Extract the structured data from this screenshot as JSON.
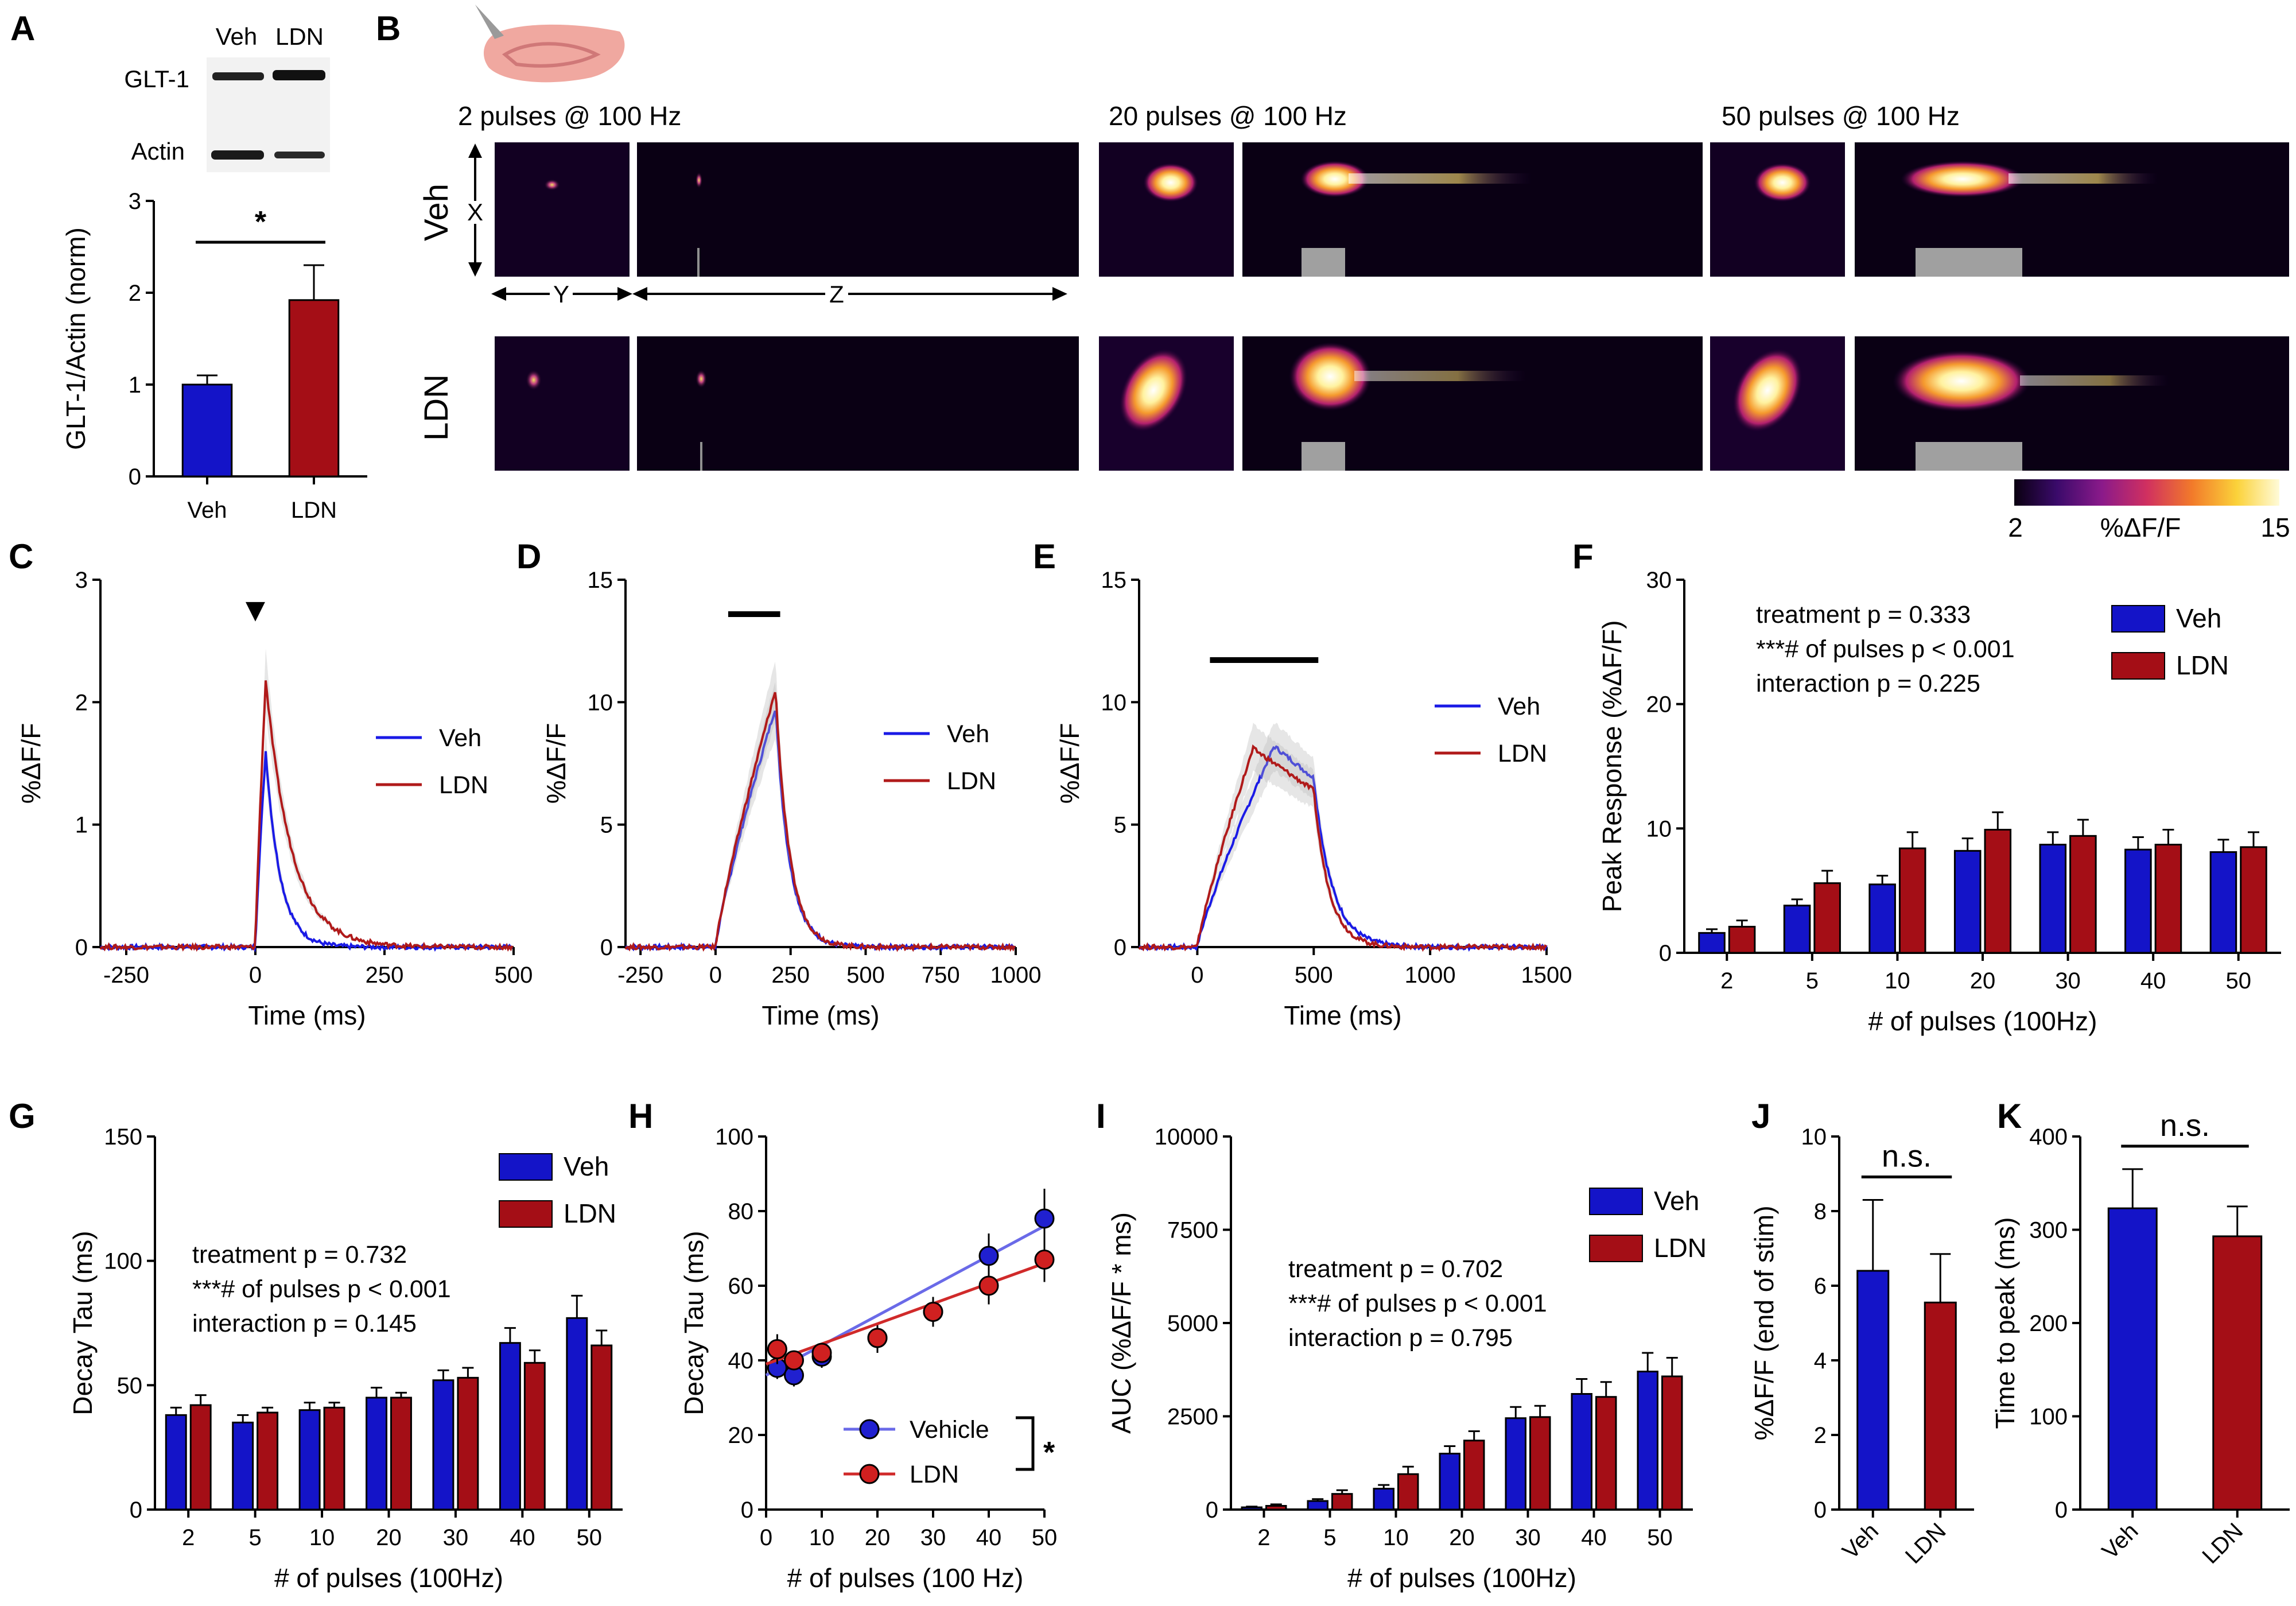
{
  "colors": {
    "veh": "#1414c8",
    "ldn": "#a40e16",
    "veh_line": "#1a1ae6",
    "ldn_line": "#b01a1a",
    "fit_veh": "#6a6ae8",
    "fit_ldn": "#d02a2a",
    "colorbar": [
      "#0a0010",
      "#3a0a6a",
      "#8a1a8a",
      "#d03060",
      "#f27a2a",
      "#fbd23a",
      "#fffbd8"
    ]
  },
  "panels": {
    "A": {
      "label": "A",
      "blot": {
        "lane_labels": [
          "Veh",
          "LDN"
        ],
        "row_labels": [
          "GLT-1",
          "Actin"
        ]
      }
    },
    "B": {
      "label": "B",
      "subtitles": [
        "2 pulses @ 100 Hz",
        "20 pulses @ 100 Hz",
        "50 pulses @ 100 Hz"
      ],
      "row_labels": [
        "Veh",
        "LDN"
      ],
      "axis_labels": {
        "x": "X",
        "y": "Y",
        "z": "Z"
      },
      "colorbar": {
        "min": "2",
        "max": "15",
        "label": "%ΔF/F"
      }
    },
    "C": {
      "label": "C"
    },
    "D": {
      "label": "D"
    },
    "E": {
      "label": "E"
    },
    "F": {
      "label": "F"
    },
    "G": {
      "label": "G"
    },
    "H": {
      "label": "H"
    },
    "I": {
      "label": "I"
    },
    "J": {
      "label": "J"
    },
    "K": {
      "label": "K"
    }
  },
  "chart_data": [
    {
      "id": "A",
      "type": "bar",
      "categories": [
        "Veh",
        "LDN"
      ],
      "values": [
        1.0,
        1.92
      ],
      "errors": [
        0.1,
        0.38
      ],
      "ylabel": "GLT-1/Actin (norm)",
      "ylim": [
        0,
        3
      ],
      "yticks": [
        0,
        1,
        2,
        3
      ],
      "significance": "*"
    },
    {
      "id": "C",
      "type": "line",
      "xlabel": "Time (ms)",
      "ylabel": "%ΔF/F",
      "xlim": [
        -300,
        500
      ],
      "ylim": [
        0,
        3
      ],
      "xticks": [
        -250,
        0,
        250,
        500
      ],
      "yticks": [
        0,
        1,
        2,
        3
      ],
      "stim_window": [
        0,
        0
      ],
      "marker": "▼",
      "series": [
        {
          "name": "Veh",
          "peak": 1.6,
          "t_peak": 20,
          "tau": 28,
          "rise": 10
        },
        {
          "name": "LDN",
          "peak": 2.18,
          "t_peak": 20,
          "tau": 50,
          "rise": 10
        }
      ]
    },
    {
      "id": "D",
      "type": "line",
      "xlabel": "Time (ms)",
      "ylabel": "%ΔF/F",
      "xlim": [
        -300,
        1000
      ],
      "ylim": [
        0,
        15
      ],
      "xticks": [
        -250,
        0,
        250,
        500,
        750,
        1000
      ],
      "yticks": [
        0,
        5,
        10,
        15
      ],
      "stim_window": [
        0,
        200
      ],
      "series": [
        {
          "name": "Veh",
          "peak": 9.8,
          "t_peak": 200,
          "tau": 46,
          "rise": 200
        },
        {
          "name": "LDN",
          "peak": 10.5,
          "t_peak": 200,
          "tau": 46,
          "rise": 200
        }
      ]
    },
    {
      "id": "E",
      "type": "line",
      "xlabel": "Time (ms)",
      "ylabel": "%ΔF/F",
      "xlim": [
        -250,
        1500
      ],
      "ylim": [
        0,
        15
      ],
      "xticks": [
        0,
        500,
        1000,
        1500
      ],
      "yticks": [
        0,
        5,
        10,
        15
      ],
      "stim_window": [
        0,
        500
      ],
      "series": [
        {
          "name": "Veh",
          "peak": 8.2,
          "t_peak": 330,
          "end_value": 6.9,
          "tau": 78,
          "rise": 500
        },
        {
          "name": "LDN",
          "peak": 8.1,
          "t_peak": 240,
          "end_value": 6.4,
          "tau": 66,
          "rise": 500
        }
      ]
    },
    {
      "id": "F",
      "type": "bar",
      "xlabel": "# of pulses (100Hz)",
      "ylabel": "Peak Response (%ΔF/F)",
      "ylim": [
        0,
        30
      ],
      "yticks": [
        0,
        10,
        20,
        30
      ],
      "categories": [
        "2",
        "5",
        "10",
        "20",
        "30",
        "40",
        "50"
      ],
      "series": [
        {
          "name": "Veh",
          "values": [
            1.6,
            3.8,
            5.5,
            8.2,
            8.7,
            8.3,
            8.1
          ],
          "errors": [
            0.3,
            0.5,
            0.7,
            1.0,
            1.0,
            1.0,
            1.0
          ]
        },
        {
          "name": "LDN",
          "values": [
            2.1,
            5.6,
            8.4,
            9.9,
            9.4,
            8.7,
            8.5
          ],
          "errors": [
            0.5,
            1.0,
            1.3,
            1.4,
            1.3,
            1.2,
            1.2
          ]
        }
      ],
      "stats": [
        "treatment p = 0.333",
        "***# of pulses p < 0.001",
        "interaction p = 0.225"
      ]
    },
    {
      "id": "G",
      "type": "bar",
      "xlabel": "# of pulses (100Hz)",
      "ylabel": "Decay Tau (ms)",
      "ylim": [
        0,
        150
      ],
      "yticks": [
        0,
        50,
        100,
        150
      ],
      "categories": [
        "2",
        "5",
        "10",
        "20",
        "30",
        "40",
        "50"
      ],
      "series": [
        {
          "name": "Veh",
          "values": [
            38,
            35,
            40,
            45,
            52,
            67,
            77
          ],
          "errors": [
            3,
            3,
            3,
            4,
            4,
            6,
            9
          ]
        },
        {
          "name": "LDN",
          "values": [
            42,
            39,
            41,
            45,
            53,
            59,
            66
          ],
          "errors": [
            4,
            2,
            2,
            2,
            4,
            5,
            6
          ]
        }
      ],
      "stats": [
        "treatment p = 0.732",
        "***# of pulses p < 0.001",
        "interaction p = 0.145"
      ]
    },
    {
      "id": "H",
      "type": "scatter",
      "xlabel": "# of pulses (100 Hz)",
      "ylabel": "Decay Tau (ms)",
      "xlim": [
        0,
        50
      ],
      "ylim": [
        0,
        100
      ],
      "xticks": [
        0,
        10,
        20,
        30,
        40,
        50
      ],
      "yticks": [
        0,
        20,
        40,
        60,
        80,
        100
      ],
      "x": [
        2,
        5,
        10,
        20,
        30,
        40,
        50
      ],
      "series": [
        {
          "name": "Vehicle",
          "values": [
            38,
            36,
            41,
            46,
            53,
            68,
            78
          ],
          "errors": [
            3,
            3,
            3,
            4,
            4,
            6,
            8
          ],
          "fit": [
            [
              0,
              36
            ],
            [
              50,
              76
            ]
          ]
        },
        {
          "name": "LDN",
          "values": [
            43,
            40,
            42,
            46,
            53,
            60,
            67
          ],
          "errors": [
            4,
            2,
            2,
            2,
            4,
            5,
            6
          ],
          "fit": [
            [
              0,
              39
            ],
            [
              50,
              66
            ]
          ]
        }
      ],
      "significance": "*"
    },
    {
      "id": "I",
      "type": "bar",
      "xlabel": "# of pulses (100Hz)",
      "ylabel": "AUC (%ΔF/F * ms)",
      "ylim": [
        0,
        10000
      ],
      "yticks": [
        0,
        2500,
        5000,
        7500,
        10000
      ],
      "categories": [
        "2",
        "5",
        "10",
        "20",
        "30",
        "40",
        "50"
      ],
      "series": [
        {
          "name": "Veh",
          "values": [
            60,
            230,
            560,
            1500,
            2450,
            3100,
            3700
          ],
          "errors": [
            20,
            50,
            100,
            200,
            300,
            400,
            500
          ]
        },
        {
          "name": "LDN",
          "values": [
            100,
            420,
            950,
            1850,
            2480,
            3020,
            3570
          ],
          "errors": [
            40,
            100,
            200,
            250,
            300,
            400,
            500
          ]
        }
      ],
      "stats": [
        "treatment p = 0.702",
        "***# of pulses p < 0.001",
        "interaction p = 0.795"
      ]
    },
    {
      "id": "J",
      "type": "bar",
      "ylabel": "%ΔF/F (end of stim)",
      "ylim": [
        0,
        10
      ],
      "yticks": [
        0,
        2,
        4,
        6,
        8,
        10
      ],
      "categories": [
        "Veh",
        "LDN"
      ],
      "values": [
        6.4,
        5.55
      ],
      "errors": [
        1.9,
        1.3
      ],
      "significance": "n.s."
    },
    {
      "id": "K",
      "type": "bar",
      "ylabel": "Time to peak (ms)",
      "ylim": [
        0,
        400
      ],
      "yticks": [
        0,
        100,
        200,
        300,
        400
      ],
      "categories": [
        "Veh",
        "LDN"
      ],
      "values": [
        323,
        293
      ],
      "errors": [
        42,
        32
      ],
      "significance": "n.s."
    }
  ]
}
